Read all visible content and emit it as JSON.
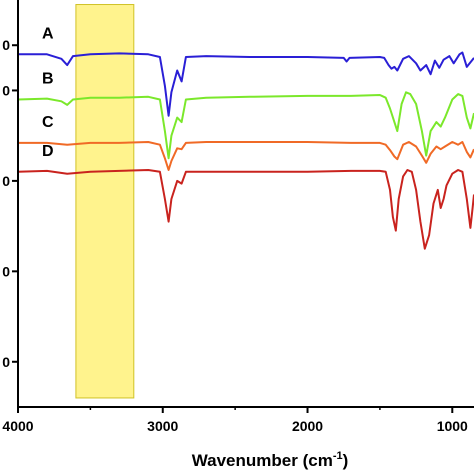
{
  "chart_data": {
    "type": "line",
    "title": "",
    "xlabel": "Wavenumber (cm",
    "xlabel_superscript": "-1",
    "xlabel_close": ")",
    "ylabel": "",
    "x_reversed": true,
    "xlim": [
      4000,
      850
    ],
    "ylim": [
      0,
      4.5
    ],
    "x_ticks": [
      4000,
      3000,
      2000,
      1000
    ],
    "x_tick_labels": [
      "4000",
      "3000",
      "2000",
      "1000"
    ],
    "y_ticks": [
      0.5,
      1.5,
      2.5,
      3.5,
      4.0
    ],
    "y_tick_labels": [
      "0",
      "0",
      "0",
      "0",
      "0"
    ],
    "highlight_band": {
      "x_start": 3600,
      "x_end": 3200,
      "color": "#fff27a"
    },
    "grid": false,
    "series": [
      {
        "name": "A",
        "color": "#2a1fd6",
        "points": [
          [
            4000,
            3.9
          ],
          [
            3800,
            3.9
          ],
          [
            3700,
            3.85
          ],
          [
            3660,
            3.78
          ],
          [
            3620,
            3.88
          ],
          [
            3500,
            3.9
          ],
          [
            3300,
            3.91
          ],
          [
            3100,
            3.9
          ],
          [
            3020,
            3.87
          ],
          [
            2985,
            3.55
          ],
          [
            2960,
            3.22
          ],
          [
            2940,
            3.48
          ],
          [
            2900,
            3.72
          ],
          [
            2870,
            3.6
          ],
          [
            2840,
            3.87
          ],
          [
            2700,
            3.88
          ],
          [
            2400,
            3.87
          ],
          [
            2000,
            3.87
          ],
          [
            1750,
            3.86
          ],
          [
            1730,
            3.82
          ],
          [
            1710,
            3.86
          ],
          [
            1500,
            3.87
          ],
          [
            1470,
            3.86
          ],
          [
            1440,
            3.78
          ],
          [
            1420,
            3.74
          ],
          [
            1400,
            3.76
          ],
          [
            1380,
            3.72
          ],
          [
            1340,
            3.85
          ],
          [
            1300,
            3.88
          ],
          [
            1250,
            3.8
          ],
          [
            1220,
            3.72
          ],
          [
            1180,
            3.78
          ],
          [
            1150,
            3.68
          ],
          [
            1120,
            3.83
          ],
          [
            1090,
            3.75
          ],
          [
            1060,
            3.84
          ],
          [
            1020,
            3.88
          ],
          [
            990,
            3.8
          ],
          [
            950,
            3.9
          ],
          [
            930,
            3.92
          ],
          [
            900,
            3.76
          ],
          [
            870,
            3.82
          ],
          [
            850,
            3.86
          ]
        ]
      },
      {
        "name": "B",
        "color": "#7be82b",
        "points": [
          [
            4000,
            3.4
          ],
          [
            3800,
            3.41
          ],
          [
            3700,
            3.38
          ],
          [
            3660,
            3.34
          ],
          [
            3620,
            3.4
          ],
          [
            3500,
            3.42
          ],
          [
            3300,
            3.42
          ],
          [
            3100,
            3.43
          ],
          [
            3020,
            3.4
          ],
          [
            2985,
            3.05
          ],
          [
            2960,
            2.75
          ],
          [
            2940,
            3.0
          ],
          [
            2900,
            3.2
          ],
          [
            2870,
            3.15
          ],
          [
            2840,
            3.4
          ],
          [
            2700,
            3.42
          ],
          [
            2400,
            3.43
          ],
          [
            2000,
            3.44
          ],
          [
            1700,
            3.44
          ],
          [
            1500,
            3.45
          ],
          [
            1460,
            3.42
          ],
          [
            1430,
            3.3
          ],
          [
            1400,
            3.15
          ],
          [
            1380,
            3.05
          ],
          [
            1350,
            3.35
          ],
          [
            1320,
            3.48
          ],
          [
            1290,
            3.46
          ],
          [
            1250,
            3.35
          ],
          [
            1210,
            3.05
          ],
          [
            1180,
            2.78
          ],
          [
            1150,
            3.05
          ],
          [
            1110,
            3.15
          ],
          [
            1080,
            3.1
          ],
          [
            1050,
            3.2
          ],
          [
            1000,
            3.4
          ],
          [
            960,
            3.46
          ],
          [
            930,
            3.44
          ],
          [
            900,
            3.2
          ],
          [
            875,
            3.08
          ],
          [
            850,
            3.25
          ]
        ]
      },
      {
        "name": "C",
        "color": "#f06a26",
        "points": [
          [
            4000,
            2.92
          ],
          [
            3800,
            2.92
          ],
          [
            3660,
            2.9
          ],
          [
            3500,
            2.92
          ],
          [
            3300,
            2.92
          ],
          [
            3100,
            2.93
          ],
          [
            3020,
            2.9
          ],
          [
            2985,
            2.75
          ],
          [
            2960,
            2.62
          ],
          [
            2940,
            2.72
          ],
          [
            2900,
            2.86
          ],
          [
            2870,
            2.85
          ],
          [
            2840,
            2.92
          ],
          [
            2700,
            2.93
          ],
          [
            2400,
            2.93
          ],
          [
            2000,
            2.93
          ],
          [
            1700,
            2.92
          ],
          [
            1500,
            2.92
          ],
          [
            1460,
            2.9
          ],
          [
            1430,
            2.84
          ],
          [
            1400,
            2.77
          ],
          [
            1380,
            2.74
          ],
          [
            1340,
            2.9
          ],
          [
            1300,
            2.93
          ],
          [
            1250,
            2.88
          ],
          [
            1210,
            2.78
          ],
          [
            1180,
            2.7
          ],
          [
            1150,
            2.8
          ],
          [
            1110,
            2.88
          ],
          [
            1080,
            2.85
          ],
          [
            1050,
            2.88
          ],
          [
            1000,
            2.93
          ],
          [
            960,
            2.9
          ],
          [
            930,
            2.93
          ],
          [
            900,
            2.82
          ],
          [
            875,
            2.76
          ],
          [
            850,
            2.85
          ]
        ]
      },
      {
        "name": "D",
        "color": "#c9231e",
        "points": [
          [
            4000,
            2.6
          ],
          [
            3800,
            2.61
          ],
          [
            3660,
            2.58
          ],
          [
            3500,
            2.6
          ],
          [
            3300,
            2.61
          ],
          [
            3100,
            2.62
          ],
          [
            3020,
            2.6
          ],
          [
            2985,
            2.3
          ],
          [
            2960,
            2.05
          ],
          [
            2940,
            2.3
          ],
          [
            2900,
            2.5
          ],
          [
            2870,
            2.47
          ],
          [
            2840,
            2.6
          ],
          [
            2700,
            2.6
          ],
          [
            2400,
            2.6
          ],
          [
            2000,
            2.6
          ],
          [
            1700,
            2.61
          ],
          [
            1500,
            2.61
          ],
          [
            1460,
            2.6
          ],
          [
            1430,
            2.4
          ],
          [
            1410,
            2.1
          ],
          [
            1390,
            1.95
          ],
          [
            1370,
            2.3
          ],
          [
            1340,
            2.55
          ],
          [
            1310,
            2.62
          ],
          [
            1280,
            2.6
          ],
          [
            1250,
            2.4
          ],
          [
            1220,
            2.05
          ],
          [
            1190,
            1.75
          ],
          [
            1160,
            1.9
          ],
          [
            1130,
            2.25
          ],
          [
            1100,
            2.4
          ],
          [
            1080,
            2.2
          ],
          [
            1060,
            2.3
          ],
          [
            1040,
            2.45
          ],
          [
            1000,
            2.58
          ],
          [
            960,
            2.62
          ],
          [
            930,
            2.6
          ],
          [
            900,
            2.3
          ],
          [
            875,
            1.98
          ],
          [
            860,
            2.2
          ],
          [
            850,
            2.35
          ]
        ]
      }
    ]
  }
}
